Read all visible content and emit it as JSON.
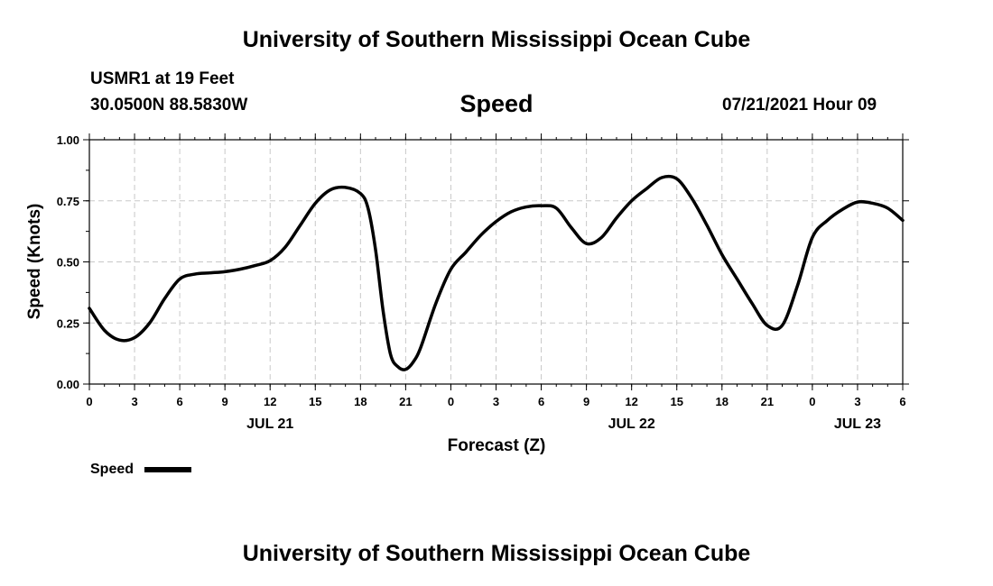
{
  "header": {
    "top_title": "University of Southern Mississippi Ocean Cube",
    "station": "USMR1 at 19 Feet",
    "coords": "30.0500N  88.5830W",
    "variable": "Speed",
    "datetime": "07/21/2021 Hour 09",
    "bottom_title": "University of Southern Mississippi Ocean Cube"
  },
  "chart_data": {
    "type": "line",
    "xlabel": "Forecast (Z)",
    "ylabel": "Speed (Knots)",
    "ylim": [
      0,
      1
    ],
    "yticks": [
      "0.00",
      "0.25",
      "0.50",
      "0.75",
      "1.00"
    ],
    "xlim": [
      0,
      54
    ],
    "xtick_labels": [
      "0",
      "3",
      "6",
      "9",
      "12",
      "15",
      "18",
      "21",
      "0",
      "3",
      "6",
      "9",
      "12",
      "15",
      "18",
      "21",
      "0",
      "3",
      "6"
    ],
    "date_labels": [
      {
        "hour": 12,
        "label": "JUL 21"
      },
      {
        "hour": 36,
        "label": "JUL 22"
      },
      {
        "hour": 51,
        "label": "JUL 23"
      }
    ],
    "grid": true,
    "legend": {
      "position": "bottom-left",
      "entries": [
        "Speed"
      ]
    },
    "colors": {
      "line": "#000000",
      "grid": "#c8c8c8"
    },
    "series": [
      {
        "name": "Speed",
        "x": [
          0,
          1,
          2,
          3,
          4,
          5,
          6,
          7,
          8,
          9,
          10,
          11,
          12,
          13,
          14,
          15,
          16,
          17,
          18,
          18.5,
          19,
          19.5,
          20,
          20.5,
          21,
          21.5,
          22,
          23,
          24,
          25,
          26,
          27,
          28,
          29,
          30,
          31,
          32,
          33,
          34,
          35,
          36,
          37,
          38,
          39,
          40,
          41,
          42,
          43,
          44,
          45,
          46,
          47,
          48,
          49,
          50,
          51,
          52,
          53,
          54
        ],
        "y": [
          0.31,
          0.22,
          0.18,
          0.19,
          0.25,
          0.35,
          0.43,
          0.45,
          0.455,
          0.46,
          0.47,
          0.485,
          0.505,
          0.56,
          0.65,
          0.74,
          0.795,
          0.805,
          0.78,
          0.72,
          0.55,
          0.3,
          0.12,
          0.07,
          0.06,
          0.09,
          0.15,
          0.33,
          0.47,
          0.54,
          0.61,
          0.665,
          0.705,
          0.725,
          0.73,
          0.72,
          0.64,
          0.575,
          0.6,
          0.68,
          0.75,
          0.8,
          0.845,
          0.84,
          0.76,
          0.65,
          0.53,
          0.43,
          0.33,
          0.24,
          0.24,
          0.4,
          0.6,
          0.67,
          0.715,
          0.745,
          0.74,
          0.72,
          0.67
        ]
      }
    ]
  },
  "legend_label": "Speed"
}
